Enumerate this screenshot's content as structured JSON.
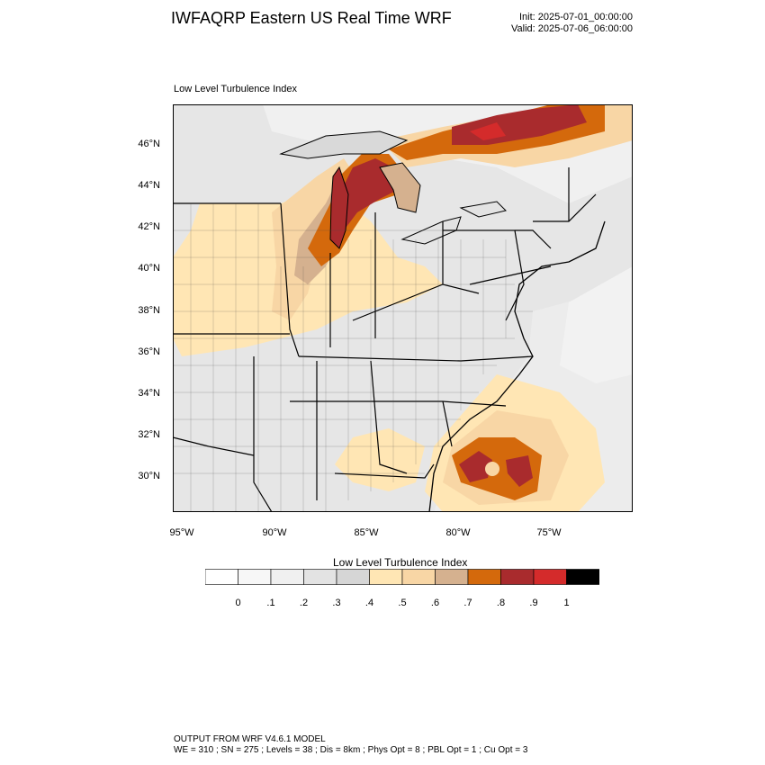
{
  "header": {
    "title": "IWFAQRP Eastern US Real Time WRF",
    "init": "Init: 2025-07-01_00:00:00",
    "valid": "Valid: 2025-07-06_06:00:00"
  },
  "map": {
    "subtitle": "Low Level Turbulence Index",
    "lat_labels": [
      "46°N",
      "44°N",
      "42°N",
      "40°N",
      "38°N",
      "36°N",
      "34°N",
      "32°N",
      "30°N"
    ],
    "lon_labels": [
      "95°W",
      "90°W",
      "85°W",
      "80°W",
      "75°W"
    ],
    "colors": {
      "background_low": "#e3e3e3",
      "light": "#f2f2f2",
      "band_04": "#ffe6b4",
      "band_05": "#f8d6a5",
      "band_06": "#d5b18f",
      "band_07": "#d4690c",
      "band_08": "#a92b2d",
      "band_09": "#d42b2b",
      "ocean": "#ebebeb",
      "border": "#000000"
    }
  },
  "colorbar": {
    "title": "Low Level Turbulence Index",
    "colors": [
      "#ffffff",
      "#f7f7f7",
      "#f0f0f0",
      "#e3e3e3",
      "#d6d6d6",
      "#ffe6b4",
      "#f8d6a5",
      "#d5b18f",
      "#d4690c",
      "#a92b2d",
      "#d42b2b",
      "#000000"
    ],
    "labels": [
      "0",
      ".1",
      ".2",
      ".3",
      ".4",
      ".5",
      ".6",
      ".7",
      ".8",
      ".9",
      "1"
    ]
  },
  "footer": {
    "line1": "OUTPUT FROM WRF V4.6.1 MODEL",
    "line2": "WE = 310 ; SN = 275 ; Levels = 38 ; Dis = 8km ; Phys Opt = 8 ; PBL Opt = 1 ; Cu Opt = 3"
  }
}
